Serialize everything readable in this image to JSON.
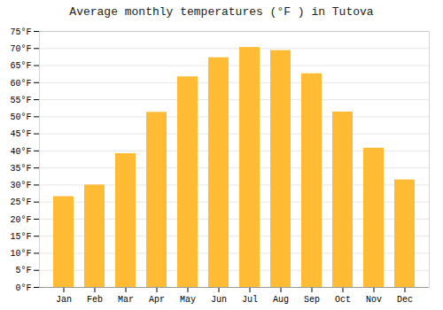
{
  "chart_data": {
    "type": "bar",
    "title": "Average monthly temperatures (°F ) in Tutova",
    "categories": [
      "Jan",
      "Feb",
      "Mar",
      "Apr",
      "May",
      "Jun",
      "Jul",
      "Aug",
      "Sep",
      "Oct",
      "Nov",
      "Dec"
    ],
    "values": [
      26.6,
      30.0,
      39.2,
      51.3,
      61.7,
      67.3,
      70.3,
      69.4,
      62.6,
      51.4,
      40.8,
      31.5
    ],
    "color": "#FFBB33",
    "ylim": [
      0,
      75
    ],
    "yticks": [
      {
        "value": 0,
        "label": "0°F"
      },
      {
        "value": 5,
        "label": "5°F"
      },
      {
        "value": 10,
        "label": "10°F"
      },
      {
        "value": 15,
        "label": "15°F"
      },
      {
        "value": 20,
        "label": "20°F"
      },
      {
        "value": 25,
        "label": "25°F"
      },
      {
        "value": 30,
        "label": "30°F"
      },
      {
        "value": 35,
        "label": "35°F"
      },
      {
        "value": 40,
        "label": "40°F"
      },
      {
        "value": 45,
        "label": "45°F"
      },
      {
        "value": 50,
        "label": "50°F"
      },
      {
        "value": 55,
        "label": "55°F"
      },
      {
        "value": 60,
        "label": "60°F"
      },
      {
        "value": 65,
        "label": "65°F"
      },
      {
        "value": 70,
        "label": "70°F"
      },
      {
        "value": 75,
        "label": "75°F"
      }
    ],
    "grid": true
  }
}
